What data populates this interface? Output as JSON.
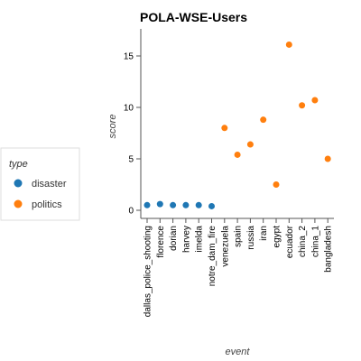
{
  "chart_data": {
    "type": "scatter",
    "title": "POLA-WSE-Users",
    "xlabel": "event",
    "ylabel": "score",
    "ylim": [
      -1,
      17.5
    ],
    "yticks": [
      0,
      5,
      10,
      15
    ],
    "grid": false,
    "legend_placement": "left",
    "legend": {
      "title": "type",
      "entries": [
        {
          "label": "disaster",
          "color": "#1f77b4"
        },
        {
          "label": "politics",
          "color": "#ff7f0e"
        }
      ]
    },
    "categories": [
      "dallas_police_shooting",
      "florence",
      "dorian",
      "harvey",
      "imelda",
      "notre_dam_fire",
      "venezuela",
      "spain",
      "russia",
      "iran",
      "egypt",
      "ecuador",
      "china_2",
      "china_1",
      "bangladesh"
    ],
    "series": [
      {
        "name": "disaster",
        "color": "#1f77b4",
        "points": [
          {
            "x": "dallas_police_shooting",
            "y": 0.5
          },
          {
            "x": "florence",
            "y": 0.6
          },
          {
            "x": "dorian",
            "y": 0.5
          },
          {
            "x": "harvey",
            "y": 0.5
          },
          {
            "x": "imelda",
            "y": 0.5
          },
          {
            "x": "notre_dam_fire",
            "y": 0.4
          }
        ]
      },
      {
        "name": "politics",
        "color": "#ff7f0e",
        "points": [
          {
            "x": "venezuela",
            "y": 8.0
          },
          {
            "x": "spain",
            "y": 5.4
          },
          {
            "x": "russia",
            "y": 6.4
          },
          {
            "x": "iran",
            "y": 8.8
          },
          {
            "x": "egypt",
            "y": 2.5
          },
          {
            "x": "ecuador",
            "y": 16.1
          },
          {
            "x": "china_2",
            "y": 10.2
          },
          {
            "x": "china_1",
            "y": 10.7
          },
          {
            "x": "bangladesh",
            "y": 5.0
          }
        ]
      }
    ]
  }
}
